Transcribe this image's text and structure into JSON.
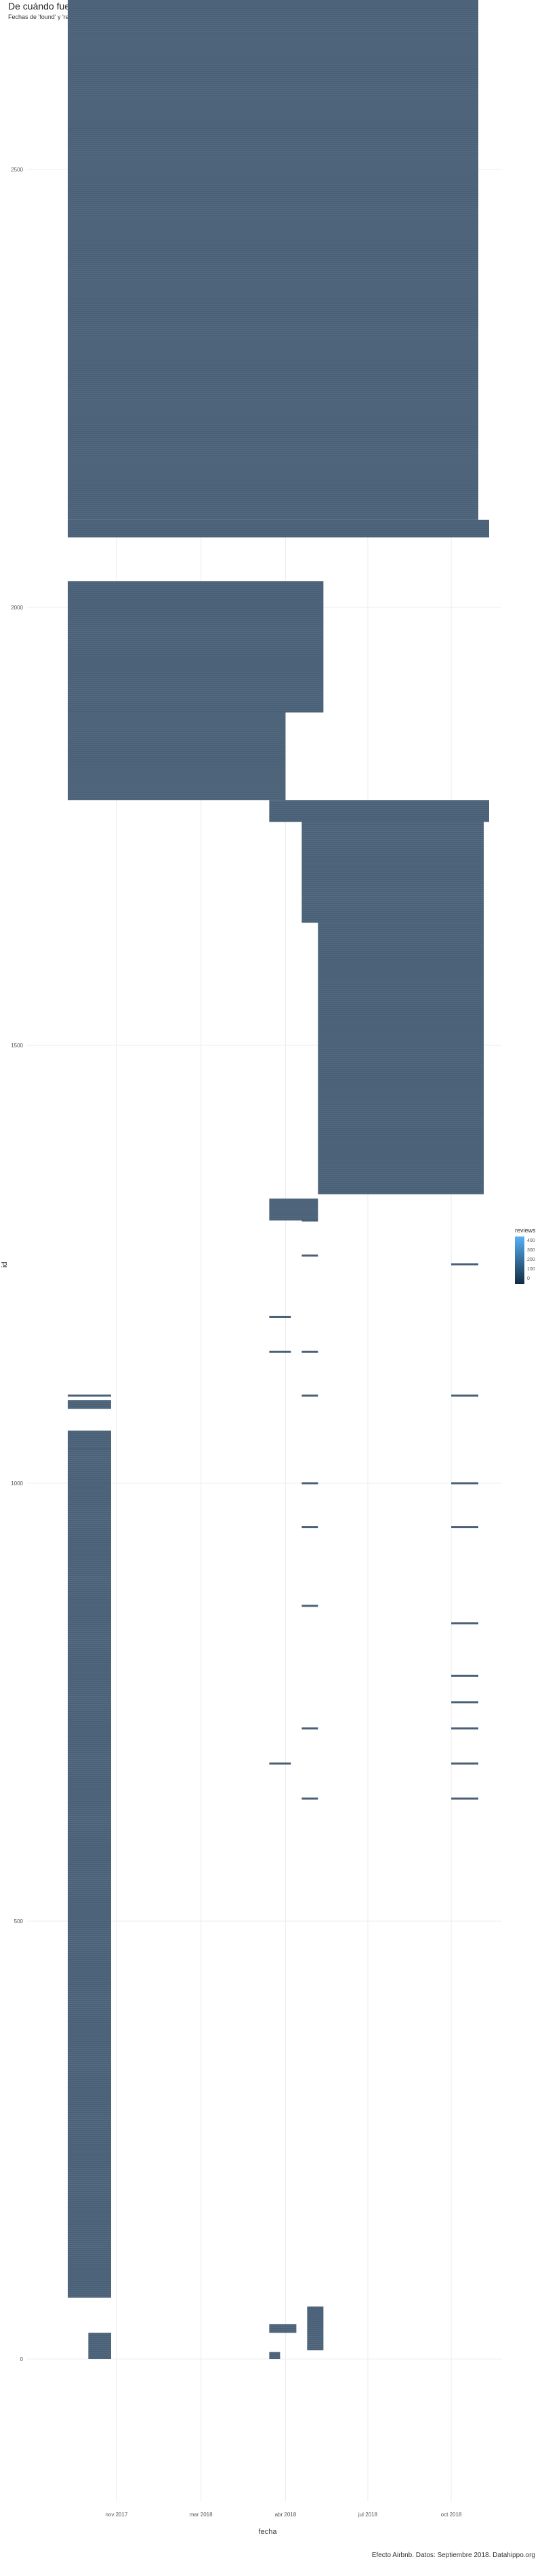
{
  "chart_data": {
    "type": "bar",
    "subtype": "horizontal-segments",
    "title": "De cuándo fueron encontrados a revisados",
    "subtitle": "Fechas de 'found' y 'revised' en Donostia. Orden por tiempo activo. Color reviews en time active",
    "caption": "Efecto Airbnb. Datos: Septiembre 2018. Datahippo.org",
    "xlabel": "fecha",
    "ylabel": "id",
    "x_ticks": [
      "nov 2017",
      "mar 2018",
      "abr 2018",
      "jul 2018",
      "oct 2018"
    ],
    "y_ticks": [
      "0",
      "500",
      "1000",
      "1500",
      "2000",
      "2500"
    ],
    "ylim": [
      -50,
      2800
    ],
    "grid": true,
    "legend": {
      "title": "reviews",
      "placement": "right",
      "ticks": [
        "400",
        "300",
        "200",
        "100",
        "0"
      ],
      "color_low": "#132B43",
      "color_high": "#56B1F7"
    },
    "segment_color": "#4a6076",
    "segment_groups": [
      {
        "id_from": 0,
        "id_to": 30,
        "start": "2017-10-20",
        "end": "2017-11-10"
      },
      {
        "id_from": 0,
        "id_to": 8,
        "start": "2018-04-05",
        "end": "2018-04-15"
      },
      {
        "id_from": 10,
        "id_to": 60,
        "start": "2018-05-10",
        "end": "2018-05-25"
      },
      {
        "id_from": 30,
        "id_to": 40,
        "start": "2018-04-05",
        "end": "2018-04-30"
      },
      {
        "id_from": 70,
        "id_to": 1060,
        "start": "2017-10-01",
        "end": "2017-11-10"
      },
      {
        "id_from": 1085,
        "id_to": 1095,
        "start": "2017-10-01",
        "end": "2017-11-10"
      },
      {
        "id_from": 1300,
        "id_to": 1325,
        "start": "2018-04-05",
        "end": "2018-05-20"
      },
      {
        "id_from": 1330,
        "id_to": 1640,
        "start": "2018-05-20",
        "end": "2018-10-20"
      },
      {
        "id_from": 1640,
        "id_to": 1755,
        "start": "2018-05-05",
        "end": "2018-10-20"
      },
      {
        "id_from": 1755,
        "id_to": 1780,
        "start": "2018-04-05",
        "end": "2018-10-25"
      },
      {
        "id_from": 1780,
        "id_to": 1880,
        "start": "2017-10-01",
        "end": "2018-04-20"
      },
      {
        "id_from": 1880,
        "id_to": 2030,
        "start": "2017-10-01",
        "end": "2018-05-25"
      },
      {
        "id_from": 2080,
        "id_to": 2100,
        "start": "2017-10-01",
        "end": "2018-10-25"
      },
      {
        "id_from": 2100,
        "id_to": 2740,
        "start": "2017-10-01",
        "end": "2018-10-15"
      },
      {
        "id_from": 2740,
        "id_to": 2790,
        "start": "2017-10-01",
        "end": "2018-10-25"
      }
    ],
    "sparse_lines": [
      {
        "id": 1040,
        "start": "2017-10-01",
        "end": "2017-11-10"
      },
      {
        "id": 1100,
        "start": "2017-10-01",
        "end": "2017-11-10"
      },
      {
        "id": 1150,
        "start": "2018-04-05",
        "end": "2018-04-25"
      },
      {
        "id": 1190,
        "start": "2018-04-05",
        "end": "2018-04-25"
      },
      {
        "id": 1260,
        "start": "2018-05-05",
        "end": "2018-05-20"
      },
      {
        "id": 1150,
        "start": "2018-05-05",
        "end": "2018-05-20"
      },
      {
        "id": 1100,
        "start": "2018-05-05",
        "end": "2018-05-20"
      },
      {
        "id": 1000,
        "start": "2018-05-05",
        "end": "2018-05-20"
      },
      {
        "id": 950,
        "start": "2018-05-05",
        "end": "2018-05-20"
      },
      {
        "id": 1250,
        "start": "2018-09-20",
        "end": "2018-10-15"
      },
      {
        "id": 1100,
        "start": "2018-09-20",
        "end": "2018-10-15"
      },
      {
        "id": 1000,
        "start": "2018-09-20",
        "end": "2018-10-15"
      },
      {
        "id": 950,
        "start": "2018-09-20",
        "end": "2018-10-15"
      },
      {
        "id": 840,
        "start": "2018-09-20",
        "end": "2018-10-15"
      },
      {
        "id": 780,
        "start": "2018-09-20",
        "end": "2018-10-15"
      },
      {
        "id": 750,
        "start": "2018-09-20",
        "end": "2018-10-15"
      },
      {
        "id": 720,
        "start": "2018-09-20",
        "end": "2018-10-15"
      },
      {
        "id": 680,
        "start": "2018-04-05",
        "end": "2018-04-25"
      },
      {
        "id": 680,
        "start": "2018-09-20",
        "end": "2018-10-15"
      },
      {
        "id": 640,
        "start": "2018-09-20",
        "end": "2018-10-15"
      },
      {
        "id": 640,
        "start": "2018-05-05",
        "end": "2018-05-20"
      },
      {
        "id": 720,
        "start": "2018-05-05",
        "end": "2018-05-20"
      },
      {
        "id": 860,
        "start": "2018-05-05",
        "end": "2018-05-20"
      },
      {
        "id": 1300,
        "start": "2018-05-05",
        "end": "2018-05-20"
      }
    ]
  }
}
